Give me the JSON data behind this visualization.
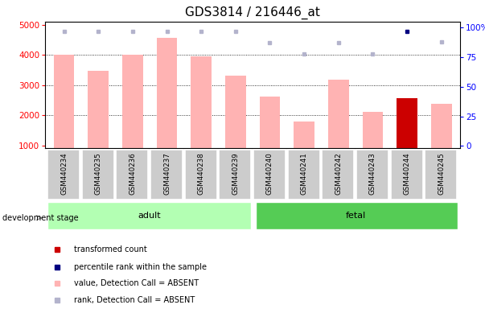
{
  "title": "GDS3814 / 216446_at",
  "samples": [
    "GSM440234",
    "GSM440235",
    "GSM440236",
    "GSM440237",
    "GSM440238",
    "GSM440239",
    "GSM440240",
    "GSM440241",
    "GSM440242",
    "GSM440243",
    "GSM440244",
    "GSM440245"
  ],
  "bar_values": [
    4000,
    3480,
    4000,
    4550,
    3950,
    3300,
    2620,
    1800,
    3180,
    2120,
    2560,
    2380
  ],
  "bar_colors": [
    "#ffb3b3",
    "#ffb3b3",
    "#ffb3b3",
    "#ffb3b3",
    "#ffb3b3",
    "#ffb3b3",
    "#ffb3b3",
    "#ffb3b3",
    "#ffb3b3",
    "#ffb3b3",
    "#cc0000",
    "#ffb3b3"
  ],
  "rank_values": [
    97,
    97,
    97,
    97,
    97,
    97,
    87,
    78,
    87,
    78,
    97,
    88
  ],
  "rank_colors": [
    "#b3b3cc",
    "#b3b3cc",
    "#b3b3cc",
    "#b3b3cc",
    "#b3b3cc",
    "#b3b3cc",
    "#b3b3cc",
    "#b3b3cc",
    "#b3b3cc",
    "#b3b3cc",
    "#000080",
    "#b3b3cc"
  ],
  "ylim_left": [
    900,
    5100
  ],
  "ylim_right": [
    -2,
    105
  ],
  "yticks_left": [
    1000,
    2000,
    3000,
    4000,
    5000
  ],
  "yticks_right": [
    0,
    25,
    50,
    75,
    100
  ],
  "yticklabels_right": [
    "0",
    "25",
    "50",
    "75",
    "100%"
  ],
  "adult_color": "#b3ffb3",
  "fetal_color": "#55cc55",
  "dev_stage_label": "development stage",
  "adult_label": "adult",
  "fetal_label": "fetal",
  "legend_items": [
    {
      "label": "transformed count",
      "color": "#cc0000"
    },
    {
      "label": "percentile rank within the sample",
      "color": "#000080"
    },
    {
      "label": "value, Detection Call = ABSENT",
      "color": "#ffb3b3"
    },
    {
      "label": "rank, Detection Call = ABSENT",
      "color": "#b3b3cc"
    }
  ],
  "title_fontsize": 11,
  "tick_fontsize": 7.5,
  "bar_bottom": 900,
  "adult_n": 6,
  "fetal_n": 6
}
